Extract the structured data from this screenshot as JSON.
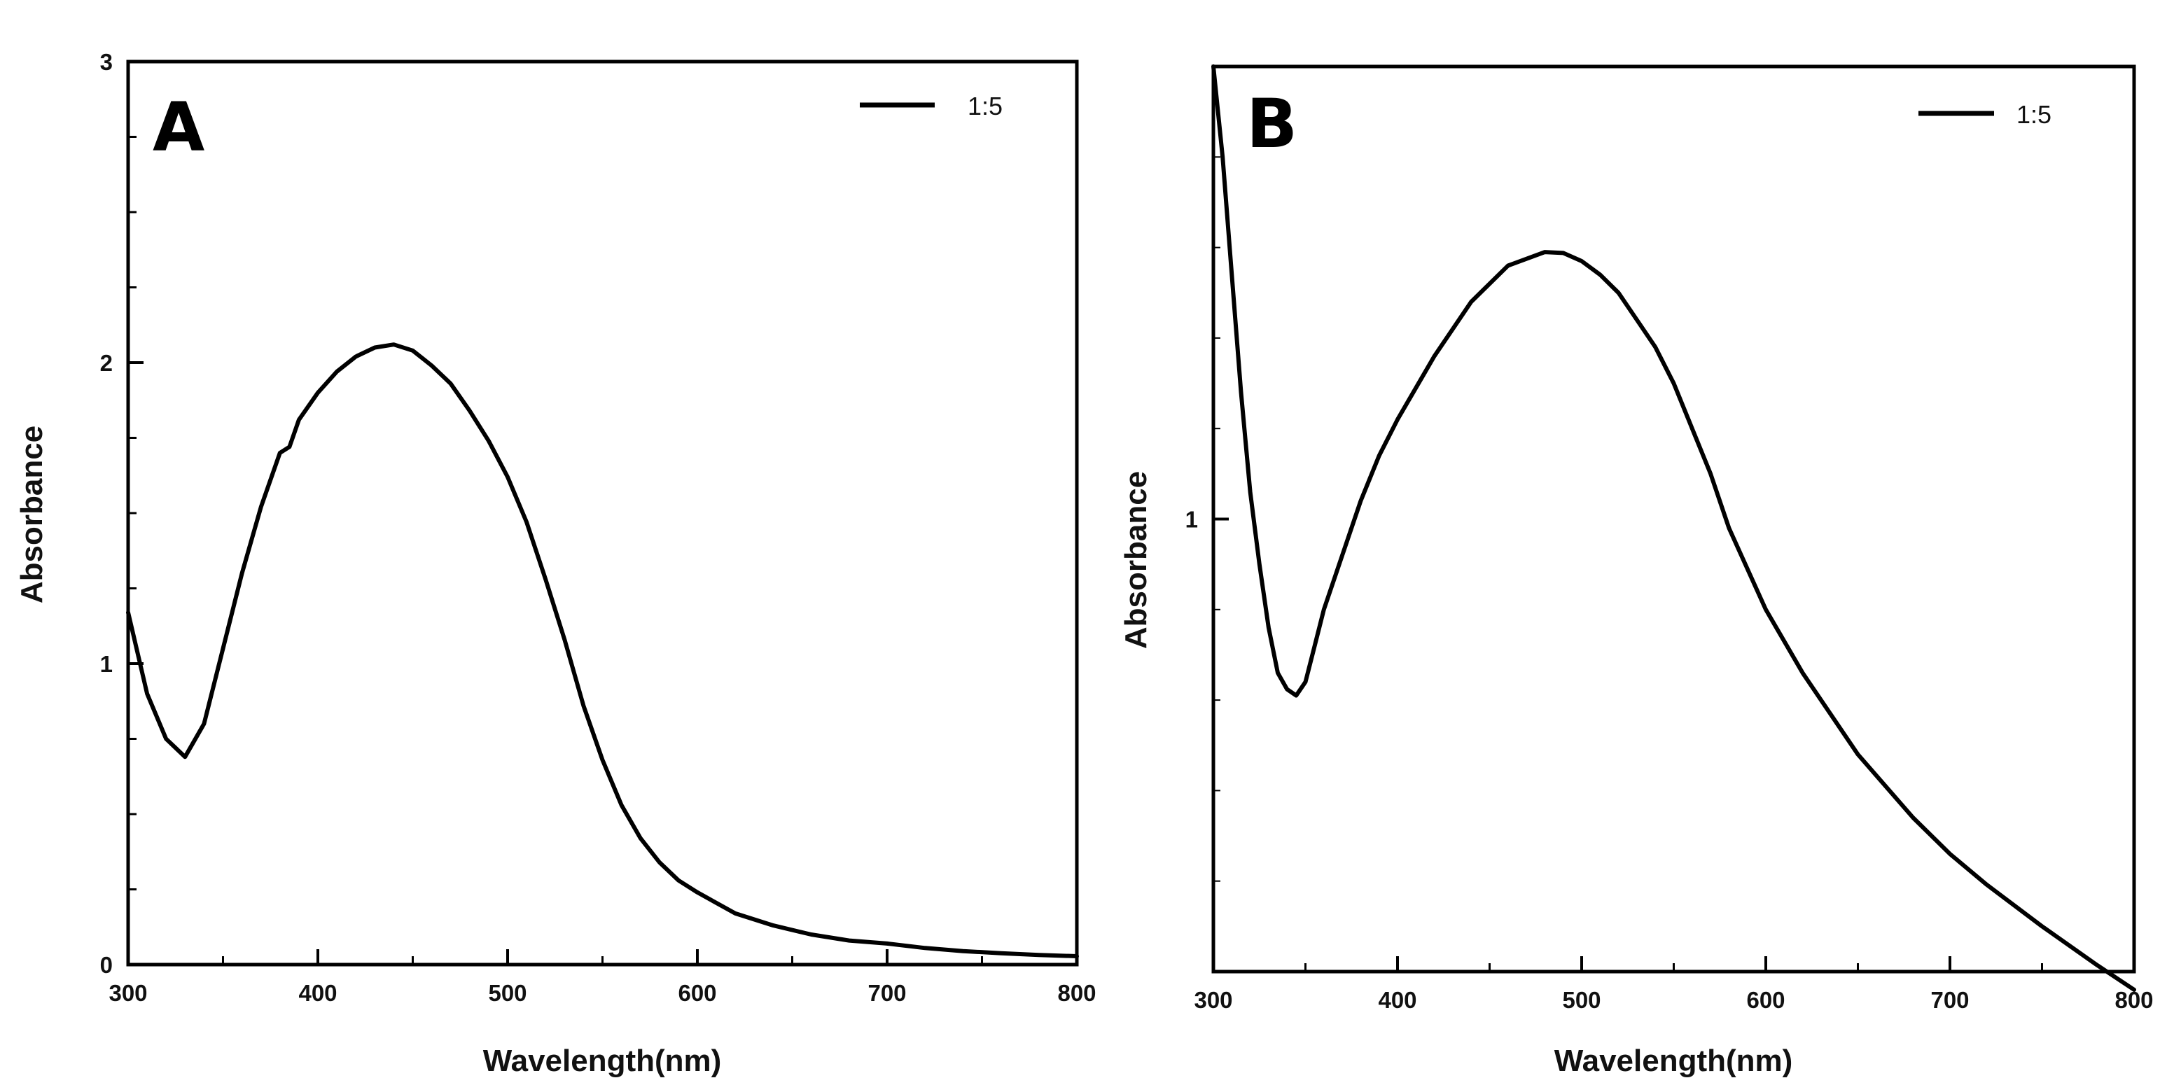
{
  "chart_data": [
    {
      "type": "line",
      "panel_label": "A",
      "xlabel": "Wavelength(nm)",
      "ylabel": "Absorbance",
      "xlim": [
        300,
        800
      ],
      "ylim": [
        0,
        3
      ],
      "x_ticks": [
        300,
        400,
        500,
        600,
        700,
        800
      ],
      "x_tick_labels": [
        "300",
        "400",
        "500",
        "600",
        "700",
        "800"
      ],
      "y_ticks": [
        0,
        1,
        2,
        3
      ],
      "y_tick_labels": [
        "0",
        "1",
        "2",
        "3"
      ],
      "legend_position": "top-right",
      "series": [
        {
          "name": "1:5",
          "x": [
            300,
            310,
            320,
            330,
            340,
            350,
            360,
            370,
            380,
            385,
            390,
            400,
            410,
            420,
            430,
            440,
            450,
            460,
            470,
            480,
            490,
            500,
            510,
            520,
            530,
            540,
            550,
            560,
            570,
            580,
            590,
            600,
            620,
            640,
            660,
            680,
            700,
            720,
            740,
            760,
            780,
            800
          ],
          "y": [
            1.17,
            0.9,
            0.75,
            0.69,
            0.8,
            1.05,
            1.3,
            1.52,
            1.7,
            1.72,
            1.81,
            1.9,
            1.97,
            2.02,
            2.05,
            2.06,
            2.04,
            1.99,
            1.93,
            1.84,
            1.74,
            1.62,
            1.47,
            1.28,
            1.08,
            0.86,
            0.68,
            0.53,
            0.42,
            0.34,
            0.28,
            0.24,
            0.17,
            0.13,
            0.1,
            0.08,
            0.07,
            0.055,
            0.045,
            0.038,
            0.032,
            0.028
          ]
        }
      ]
    },
    {
      "type": "line",
      "panel_label": "B",
      "xlabel": "Wavelength(nm)",
      "ylabel": "Absorbance",
      "xlim": [
        300,
        800
      ],
      "ylim": [
        0.5,
        1.5
      ],
      "x_ticks": [
        300,
        400,
        500,
        600,
        700,
        800
      ],
      "x_tick_labels": [
        "300",
        "400",
        "500",
        "600",
        "700",
        "800"
      ],
      "y_ticks": [
        1
      ],
      "y_tick_labels": [
        "1"
      ],
      "legend_position": "top-right",
      "series": [
        {
          "name": "1:5",
          "x": [
            300,
            305,
            310,
            315,
            320,
            325,
            330,
            335,
            340,
            345,
            350,
            355,
            360,
            370,
            380,
            390,
            400,
            420,
            440,
            460,
            480,
            490,
            500,
            510,
            520,
            530,
            540,
            550,
            560,
            570,
            580,
            600,
            620,
            650,
            680,
            700,
            720,
            750,
            780,
            800
          ],
          "y": [
            1.5,
            1.4,
            1.27,
            1.14,
            1.03,
            0.95,
            0.88,
            0.83,
            0.812,
            0.805,
            0.82,
            0.86,
            0.9,
            0.96,
            1.02,
            1.07,
            1.11,
            1.18,
            1.24,
            1.28,
            1.295,
            1.294,
            1.285,
            1.27,
            1.25,
            1.22,
            1.19,
            1.15,
            1.1,
            1.05,
            0.99,
            0.9,
            0.83,
            0.74,
            0.67,
            0.63,
            0.596,
            0.55,
            0.507,
            0.48
          ]
        }
      ]
    }
  ]
}
